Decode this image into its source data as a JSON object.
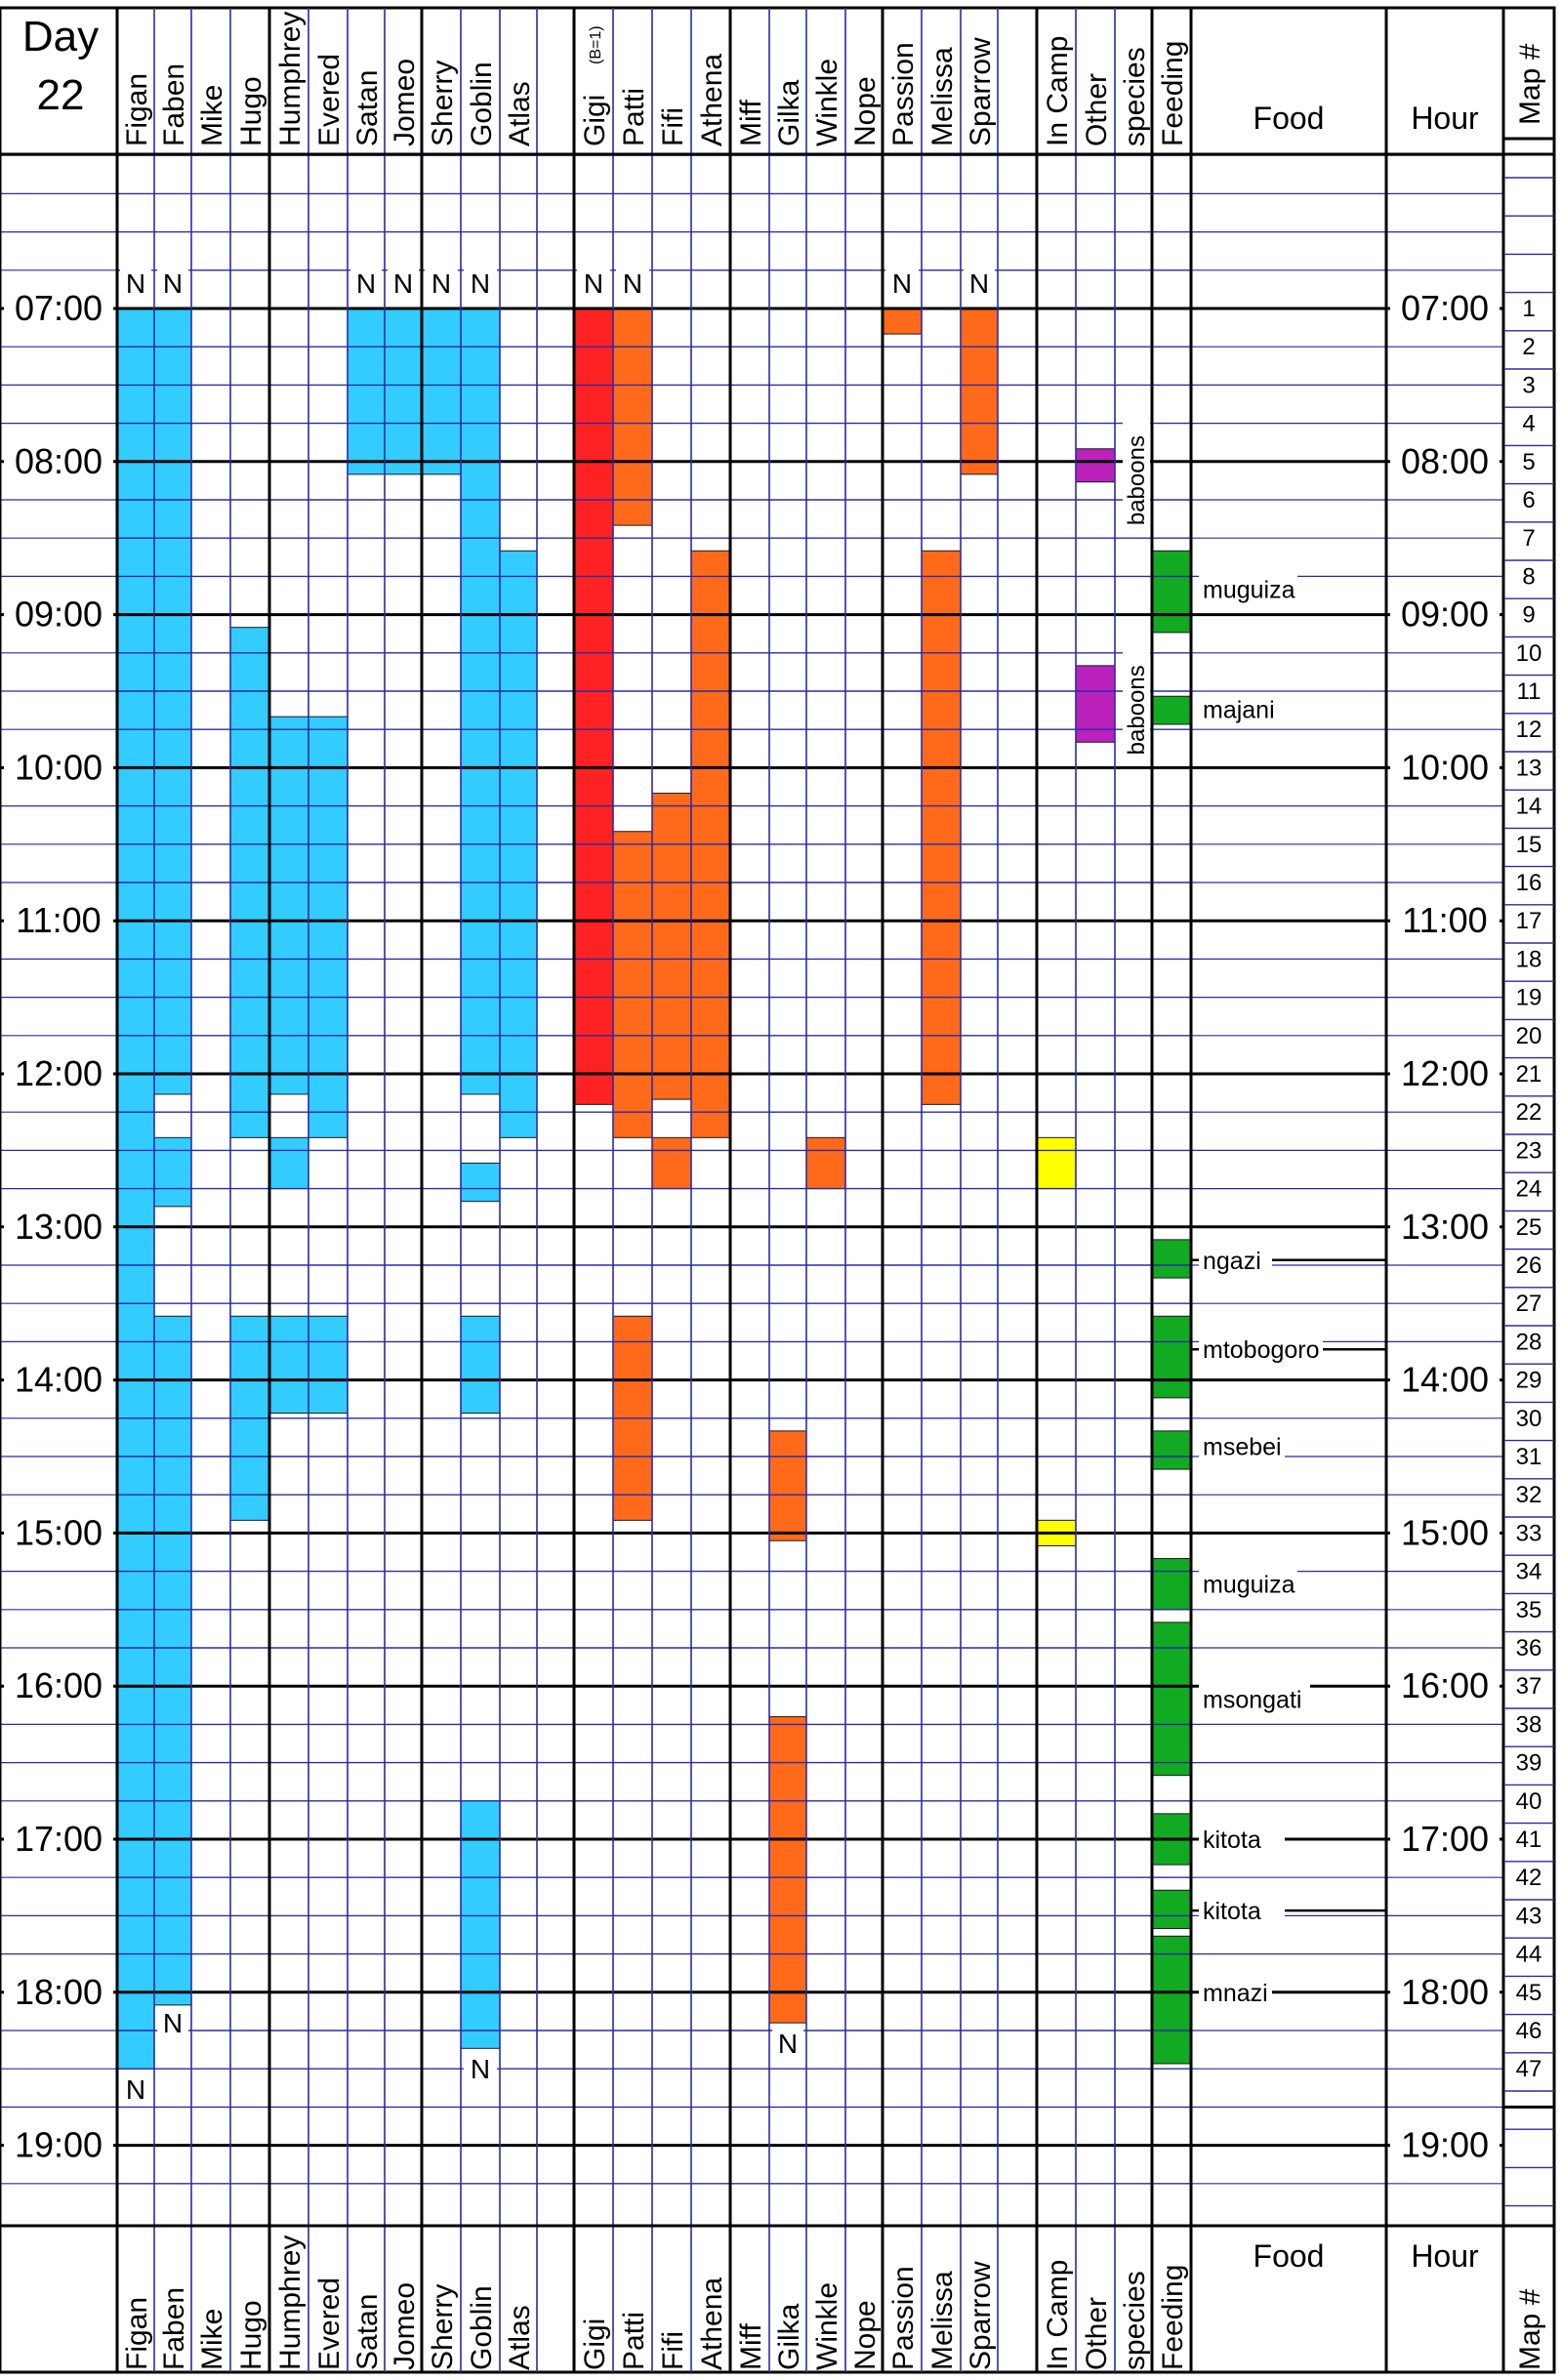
{
  "chart_data": {
    "type": "table",
    "day_label": "Day",
    "day_number": "22",
    "columns": [
      {
        "key": "figan",
        "label": "Figan"
      },
      {
        "key": "faben",
        "label": "Faben"
      },
      {
        "key": "mike",
        "label": "Mike"
      },
      {
        "key": "hugo",
        "label": "Hugo"
      },
      {
        "key": "humphrey",
        "label": "Humphrey"
      },
      {
        "key": "evered",
        "label": "Evered"
      },
      {
        "key": "satan",
        "label": "Satan"
      },
      {
        "key": "jomeo",
        "label": "Jomeo"
      },
      {
        "key": "sherry",
        "label": "Sherry"
      },
      {
        "key": "goblin",
        "label": "Goblin"
      },
      {
        "key": "atlas",
        "label": "Atlas"
      },
      {
        "key": "blank1",
        "label": ""
      },
      {
        "key": "gigi",
        "label": "Gigi",
        "note": "(B=1)"
      },
      {
        "key": "patti",
        "label": "Patti"
      },
      {
        "key": "fifi",
        "label": "Fifi"
      },
      {
        "key": "athena",
        "label": "Athena"
      },
      {
        "key": "miff",
        "label": "Miff"
      },
      {
        "key": "gilka",
        "label": "Gilka"
      },
      {
        "key": "winkle",
        "label": "Winkle"
      },
      {
        "key": "nope",
        "label": "Nope"
      },
      {
        "key": "passion",
        "label": "Passion"
      },
      {
        "key": "melissa",
        "label": "Melissa"
      },
      {
        "key": "sparrow",
        "label": "Sparrow"
      },
      {
        "key": "blank2",
        "label": ""
      },
      {
        "key": "incamp",
        "label": "In Camp"
      },
      {
        "key": "other_a",
        "label": "Other"
      },
      {
        "key": "other_b",
        "label": "species"
      },
      {
        "key": "feeding",
        "label": "Feeding"
      }
    ],
    "food_header": "Food",
    "hour_header": "Hour",
    "map_header": "Map #",
    "hours": [
      "07:00",
      "08:00",
      "09:00",
      "10:00",
      "11:00",
      "12:00",
      "13:00",
      "14:00",
      "15:00",
      "16:00",
      "17:00",
      "18:00",
      "19:00"
    ],
    "map_numbers": [
      1,
      2,
      3,
      4,
      5,
      6,
      7,
      8,
      9,
      10,
      11,
      12,
      13,
      14,
      15,
      16,
      17,
      18,
      19,
      20,
      21,
      22,
      23,
      24,
      25,
      26,
      27,
      28,
      29,
      30,
      31,
      32,
      33,
      34,
      35,
      36,
      37,
      38,
      39,
      40,
      41,
      42,
      43,
      44,
      45,
      46,
      47
    ],
    "presence": [
      {
        "col": "figan",
        "from": "07:00",
        "to": "18:30",
        "color": "#33ccff"
      },
      {
        "col": "faben",
        "from": "07:00",
        "to": "12:08",
        "color": "#33ccff"
      },
      {
        "col": "faben",
        "from": "12:25",
        "to": "12:52",
        "color": "#33ccff"
      },
      {
        "col": "faben",
        "from": "13:35",
        "to": "18:05",
        "color": "#33ccff"
      },
      {
        "col": "hugo",
        "from": "09:05",
        "to": "12:25",
        "color": "#33ccff"
      },
      {
        "col": "hugo",
        "from": "13:35",
        "to": "14:55",
        "color": "#33ccff"
      },
      {
        "col": "humphrey",
        "from": "09:40",
        "to": "12:08",
        "color": "#33ccff"
      },
      {
        "col": "humphrey",
        "from": "12:25",
        "to": "12:45",
        "color": "#33ccff"
      },
      {
        "col": "humphrey",
        "from": "13:35",
        "to": "14:13",
        "color": "#33ccff"
      },
      {
        "col": "evered",
        "from": "09:40",
        "to": "12:25",
        "color": "#33ccff"
      },
      {
        "col": "evered",
        "from": "13:35",
        "to": "14:13",
        "color": "#33ccff"
      },
      {
        "col": "satan",
        "from": "07:00",
        "to": "08:05",
        "color": "#33ccff"
      },
      {
        "col": "jomeo",
        "from": "07:00",
        "to": "08:05",
        "color": "#33ccff"
      },
      {
        "col": "sherry",
        "from": "07:00",
        "to": "08:05",
        "color": "#33ccff"
      },
      {
        "col": "goblin",
        "from": "07:00",
        "to": "12:08",
        "color": "#33ccff"
      },
      {
        "col": "goblin",
        "from": "12:35",
        "to": "12:50",
        "color": "#33ccff"
      },
      {
        "col": "goblin",
        "from": "13:35",
        "to": "14:13",
        "color": "#33ccff"
      },
      {
        "col": "goblin",
        "from": "16:45",
        "to": "18:22",
        "color": "#33ccff"
      },
      {
        "col": "atlas",
        "from": "08:35",
        "to": "12:25",
        "color": "#33ccff"
      },
      {
        "col": "gigi",
        "from": "07:00",
        "to": "12:12",
        "color": "#ff2222"
      },
      {
        "col": "patti",
        "from": "07:00",
        "to": "08:25",
        "color": "#ff6a1a"
      },
      {
        "col": "patti",
        "from": "10:25",
        "to": "12:25",
        "color": "#ff6a1a"
      },
      {
        "col": "patti",
        "from": "13:35",
        "to": "14:55",
        "color": "#ff6a1a"
      },
      {
        "col": "fifi",
        "from": "10:10",
        "to": "12:10",
        "color": "#ff6a1a"
      },
      {
        "col": "fifi",
        "from": "12:25",
        "to": "12:45",
        "color": "#ff6a1a"
      },
      {
        "col": "athena",
        "from": "08:35",
        "to": "12:25",
        "color": "#ff6a1a"
      },
      {
        "col": "gilka",
        "from": "14:20",
        "to": "15:03",
        "color": "#ff6a1a"
      },
      {
        "col": "gilka",
        "from": "16:12",
        "to": "18:12",
        "color": "#ff6a1a"
      },
      {
        "col": "winkle",
        "from": "12:25",
        "to": "12:45",
        "color": "#ff6a1a"
      },
      {
        "col": "passion",
        "from": "07:00",
        "to": "07:10",
        "color": "#ff6a1a"
      },
      {
        "col": "melissa",
        "from": "08:35",
        "to": "12:12",
        "color": "#ff6a1a"
      },
      {
        "col": "sparrow",
        "from": "07:00",
        "to": "08:05",
        "color": "#ff6a1a"
      },
      {
        "col": "incamp",
        "from": "12:25",
        "to": "12:45",
        "color": "#ffff00"
      },
      {
        "col": "incamp",
        "from": "14:55",
        "to": "15:05",
        "color": "#ffff00"
      },
      {
        "col": "other_a",
        "from": "07:55",
        "to": "08:08",
        "color": "#bb22bb"
      },
      {
        "col": "other_a",
        "from": "09:20",
        "to": "09:50",
        "color": "#bb22bb"
      },
      {
        "col": "feeding",
        "from": "08:35",
        "to": "09:07",
        "color": "#11aa22"
      },
      {
        "col": "feeding",
        "from": "09:32",
        "to": "09:43",
        "color": "#11aa22"
      },
      {
        "col": "feeding",
        "from": "13:05",
        "to": "13:20",
        "color": "#11aa22"
      },
      {
        "col": "feeding",
        "from": "13:35",
        "to": "14:07",
        "color": "#11aa22"
      },
      {
        "col": "feeding",
        "from": "14:20",
        "to": "14:35",
        "color": "#11aa22"
      },
      {
        "col": "feeding",
        "from": "15:10",
        "to": "15:30",
        "color": "#11aa22"
      },
      {
        "col": "feeding",
        "from": "15:35",
        "to": "16:35",
        "color": "#11aa22"
      },
      {
        "col": "feeding",
        "from": "16:50",
        "to": "17:10",
        "color": "#11aa22"
      },
      {
        "col": "feeding",
        "from": "17:20",
        "to": "17:35",
        "color": "#11aa22"
      },
      {
        "col": "feeding",
        "from": "17:38",
        "to": "18:28",
        "color": "#11aa22"
      }
    ],
    "nest_marks": [
      {
        "col": "figan",
        "time": "06:50",
        "text": "N"
      },
      {
        "col": "faben",
        "time": "06:50",
        "text": "N"
      },
      {
        "col": "satan",
        "time": "06:50",
        "text": "N"
      },
      {
        "col": "jomeo",
        "time": "06:50",
        "text": "N"
      },
      {
        "col": "sherry",
        "time": "06:50",
        "text": "N"
      },
      {
        "col": "goblin",
        "time": "06:50",
        "text": "N"
      },
      {
        "col": "gigi",
        "time": "06:50",
        "text": "N"
      },
      {
        "col": "patti",
        "time": "06:50",
        "text": "N"
      },
      {
        "col": "passion",
        "time": "06:50",
        "text": "N"
      },
      {
        "col": "sparrow",
        "time": "06:50",
        "text": "N"
      },
      {
        "col": "faben",
        "time": "18:12",
        "text": "N"
      },
      {
        "col": "gilka",
        "time": "18:20",
        "text": "N"
      },
      {
        "col": "goblin",
        "time": "18:30",
        "text": "N"
      },
      {
        "col": "figan",
        "time": "18:38",
        "text": "N"
      }
    ],
    "other_species_labels": [
      {
        "text": "baboons",
        "from": "07:40",
        "to": "08:25"
      },
      {
        "text": "baboons",
        "from": "09:10",
        "to": "09:55"
      }
    ],
    "food_labels": [
      {
        "text": "muguiza",
        "time": "08:50",
        "line": false
      },
      {
        "text": "majani",
        "time": "09:37",
        "line": false
      },
      {
        "text": "ngazi",
        "time": "13:13",
        "line": true
      },
      {
        "text": "mtobogoro",
        "time": "13:48",
        "line": true
      },
      {
        "text": "msebei",
        "time": "14:26",
        "line": false
      },
      {
        "text": "muguiza",
        "time": "15:20",
        "line": false
      },
      {
        "text": "msongati",
        "time": "16:05",
        "line": false
      },
      {
        "text": "kitota",
        "time": "17:00",
        "line": true
      },
      {
        "text": "kitota",
        "time": "17:28",
        "line": true
      },
      {
        "text": "mnazi",
        "time": "18:00",
        "line": true
      }
    ]
  }
}
